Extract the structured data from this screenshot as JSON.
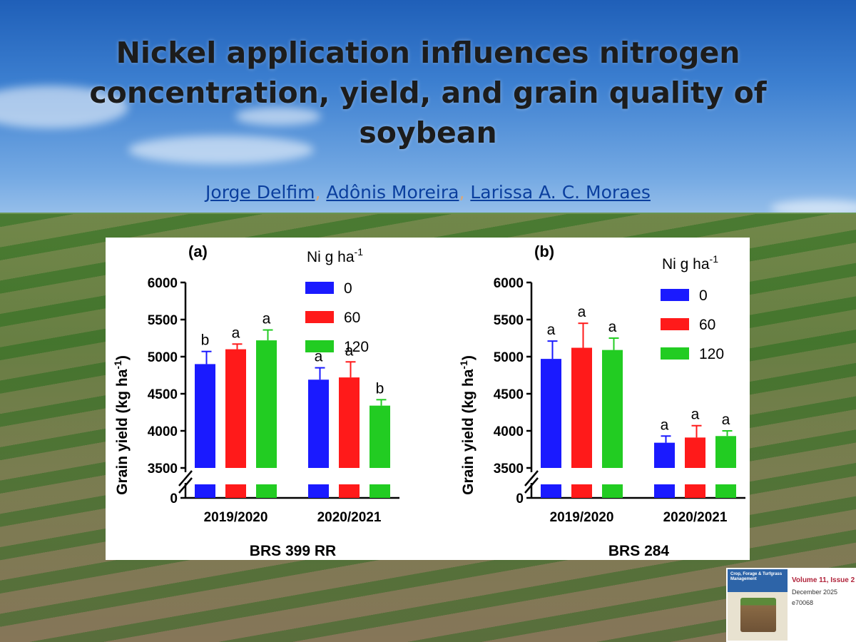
{
  "title": "Nickel application influences nitrogen concentration, yield, and grain quality of soybean",
  "authors": [
    "Jorge Delfim",
    "Adônis Moreira",
    "Larissa A. C. Moraes"
  ],
  "author_separator": ", ",
  "journal": {
    "cover_title": "Crop, Forage & Turfgrass Management",
    "volume": "Volume 11, Issue 2",
    "date": "December 2025",
    "article_id": "e70068"
  },
  "chart_data": [
    {
      "type": "bar",
      "panel_label": "(a)",
      "cultivar": "BRS 399 RR",
      "ylabel": "Grain yield (kg ha",
      "ylabel_sup": "-1",
      "ylabel_close": ")",
      "legend_title": "Ni g ha",
      "legend_title_sup": "-1",
      "categories": [
        "2019/2020",
        "2020/2021"
      ],
      "yticks": [
        3500,
        4000,
        4500,
        5000,
        5500,
        6000
      ],
      "ylim": [
        3500,
        6000
      ],
      "axis_break": true,
      "zero_label": "0",
      "series": [
        {
          "name": "0",
          "color": "#1a1aff",
          "values": [
            4900,
            4690
          ],
          "errors": [
            170,
            160
          ],
          "letters": [
            "b",
            "a"
          ]
        },
        {
          "name": "60",
          "color": "#ff1a1a",
          "values": [
            5100,
            4720
          ],
          "errors": [
            70,
            210
          ],
          "letters": [
            "a",
            "a"
          ]
        },
        {
          "name": "120",
          "color": "#22cc22",
          "values": [
            5220,
            4340
          ],
          "errors": [
            140,
            80
          ],
          "letters": [
            "a",
            "b"
          ]
        }
      ]
    },
    {
      "type": "bar",
      "panel_label": "(b)",
      "cultivar": "BRS 284",
      "ylabel": "Grain yield (kg ha",
      "ylabel_sup": "-1",
      "ylabel_close": ")",
      "legend_title": "Ni g ha",
      "legend_title_sup": "-1",
      "categories": [
        "2019/2020",
        "2020/2021"
      ],
      "yticks": [
        3500,
        4000,
        4500,
        5000,
        5500,
        6000
      ],
      "ylim": [
        3500,
        6000
      ],
      "axis_break": true,
      "zero_label": "0",
      "series": [
        {
          "name": "0",
          "color": "#1a1aff",
          "values": [
            4970,
            3840
          ],
          "errors": [
            240,
            90
          ],
          "letters": [
            "a",
            "a"
          ]
        },
        {
          "name": "60",
          "color": "#ff1a1a",
          "values": [
            5120,
            3910
          ],
          "errors": [
            330,
            160
          ],
          "letters": [
            "a",
            "a"
          ]
        },
        {
          "name": "120",
          "color": "#22cc22",
          "values": [
            5090,
            3930
          ],
          "errors": [
            160,
            70
          ],
          "letters": [
            "a",
            "a"
          ]
        }
      ]
    }
  ]
}
